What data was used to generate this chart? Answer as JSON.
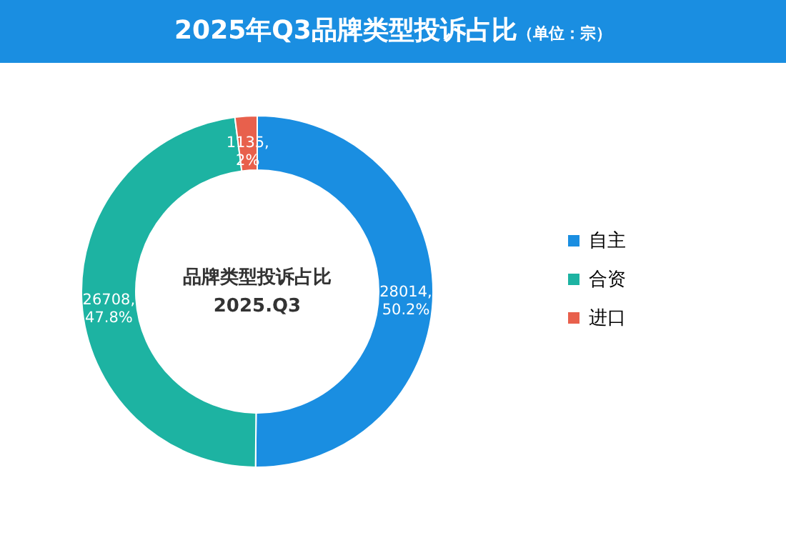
{
  "chart_data": {
    "type": "donut",
    "title": "2025年Q3品牌类型投诉占比",
    "subtitle": "（单位：宗）",
    "categories": [
      "自主",
      "合资",
      "进口"
    ],
    "values": [
      28014,
      26708,
      1135
    ],
    "colors": [
      "#1a8ee1",
      "#1db3a2",
      "#e8604c"
    ],
    "value_labels": [
      "28014, 50.2%",
      "26708, 47.8%",
      "1135, 2%"
    ],
    "annotations": [
      "品牌类型投诉占比",
      "2025.Q3"
    ],
    "legend": "right"
  }
}
